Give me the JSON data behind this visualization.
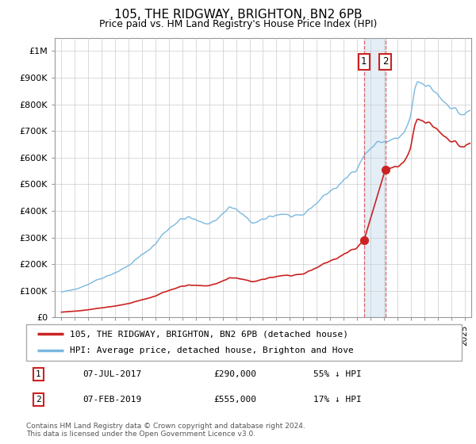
{
  "title": "105, THE RIDGWAY, BRIGHTON, BN2 6PB",
  "subtitle": "Price paid vs. HM Land Registry's House Price Index (HPI)",
  "hpi_label": "HPI: Average price, detached house, Brighton and Hove",
  "property_label": "105, THE RIDGWAY, BRIGHTON, BN2 6PB (detached house)",
  "footer1": "Contains HM Land Registry data © Crown copyright and database right 2024.",
  "footer2": "This data is licensed under the Open Government Licence v3.0.",
  "sale1_date": "07-JUL-2017",
  "sale1_price": 290000,
  "sale1_note": "55% ↓ HPI",
  "sale2_date": "07-FEB-2019",
  "sale2_price": 555000,
  "sale2_note": "17% ↓ HPI",
  "sale1_year": 2017.52,
  "sale2_year": 2019.1,
  "hpi_color": "#7ab8e0",
  "property_color": "#cc2222",
  "vline_color": "#dd4444",
  "span_color": "#c8dff0",
  "grid_color": "#cccccc",
  "bg_color": "#ffffff",
  "ylim_max": 1050000,
  "ylim_min": 0,
  "xlim_min": 1994.5,
  "xlim_max": 2025.5
}
